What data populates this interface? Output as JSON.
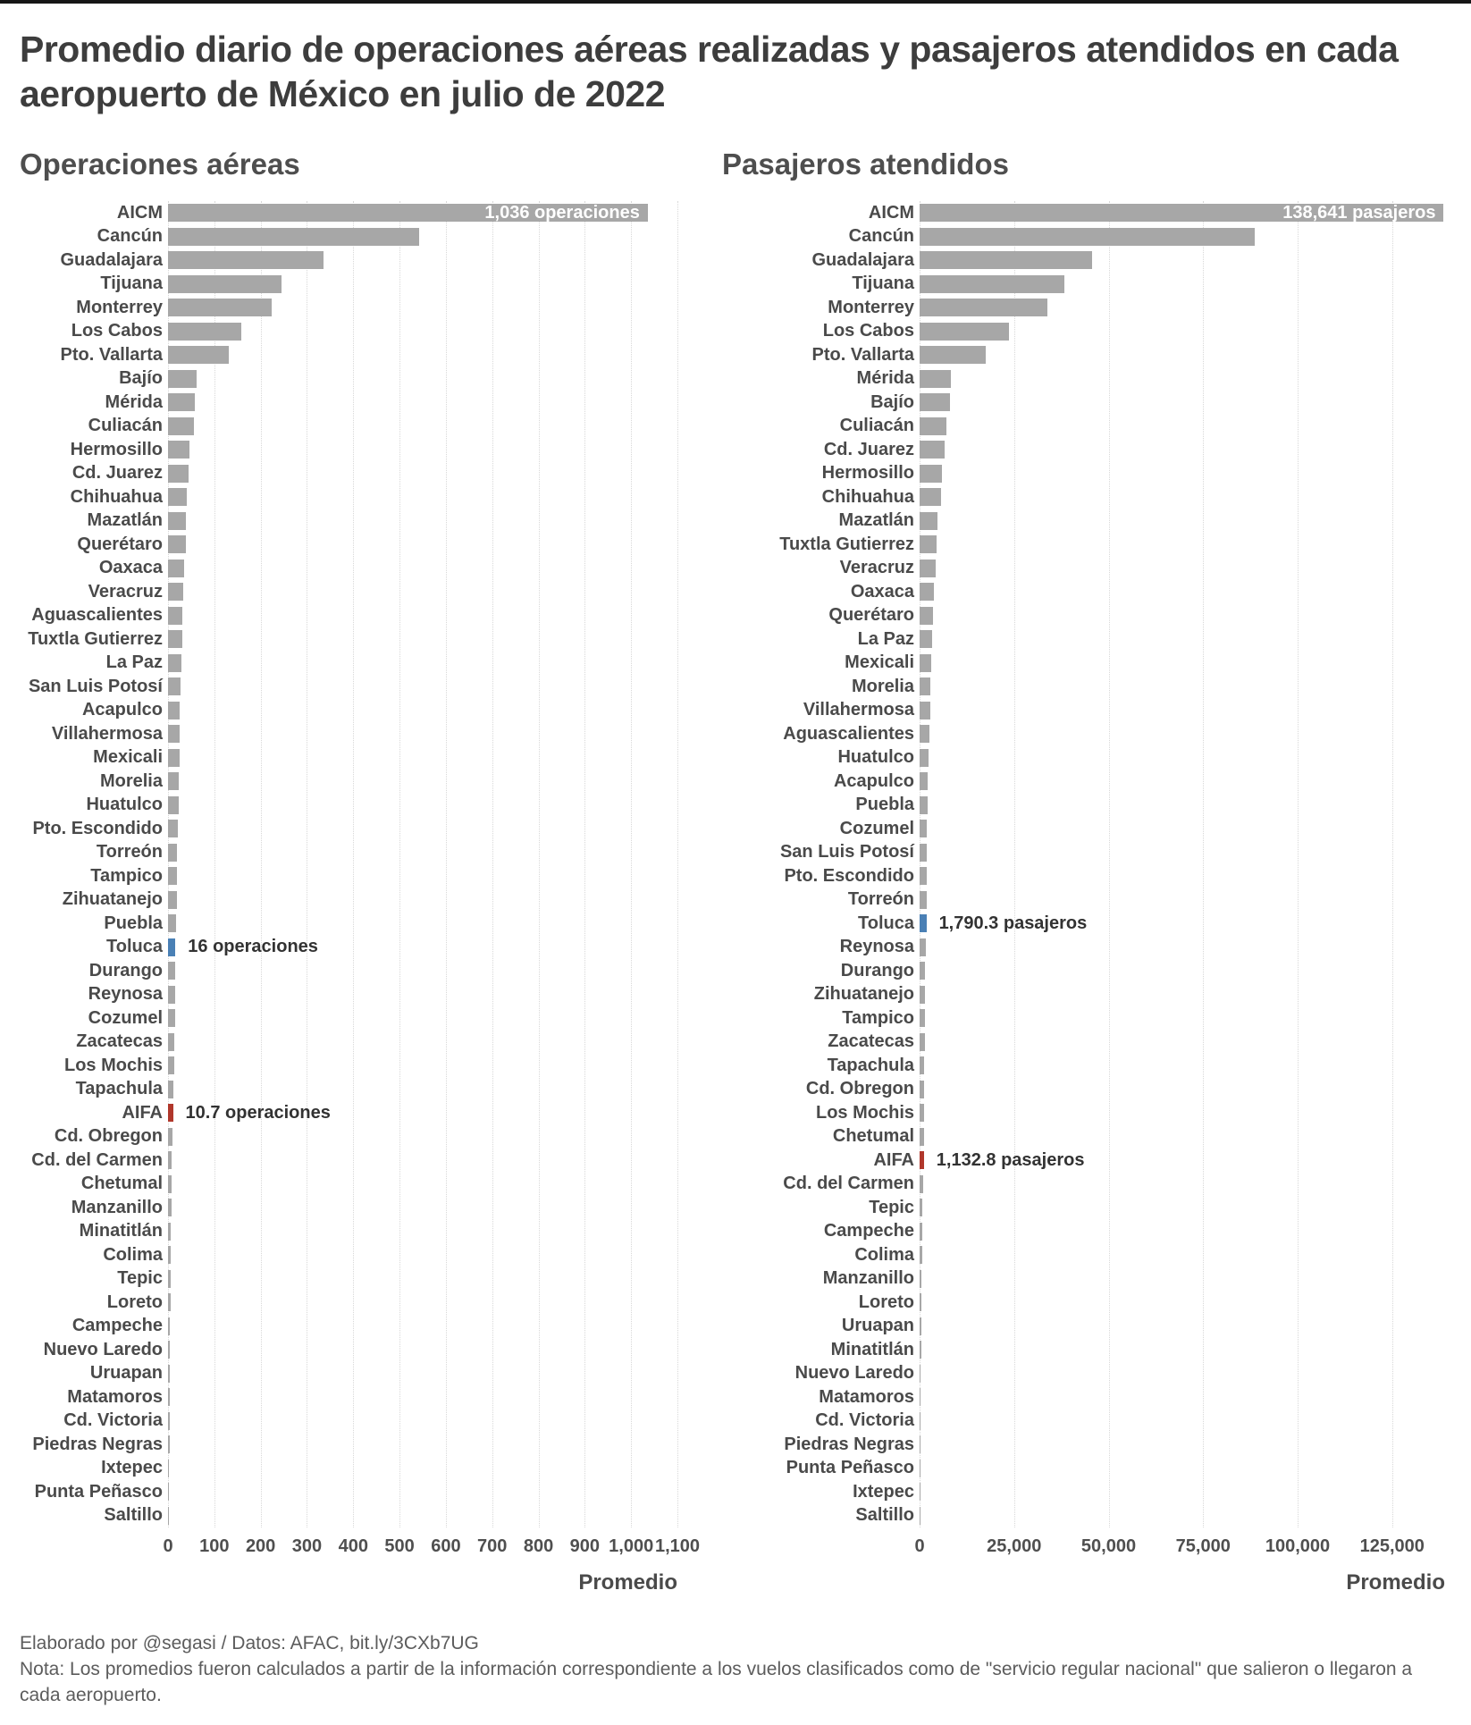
{
  "page": {
    "title": "Promedio diario de operaciones aéreas realizadas y pasajeros atendidos en cada aeropuerto de México en julio de 2022",
    "axis_title": "Promedio",
    "footer_credit": "Elaborado por @segasi / Datos: AFAC, bit.ly/3CXb7UG",
    "footer_note": "Nota: Los promedios fueron calculados a partir de la información correspondiente a los vuelos clasificados como de \"servicio regular nacional\" que salieron o llegaron a cada aeropuerto."
  },
  "colors": {
    "bar": "#a7a7a7",
    "highlight_blue": "#4a80b5",
    "highlight_red": "#b0372b",
    "annotation_inside": "#ffffff",
    "annotation_outside": "#323232"
  },
  "chart_data": [
    {
      "type": "bar",
      "orientation": "horizontal",
      "title": "Operaciones aéreas",
      "xlabel": "Promedio",
      "xlim": [
        0,
        1100
      ],
      "grid": "dotted-vertical",
      "xticks": [
        0,
        100,
        200,
        300,
        400,
        500,
        600,
        700,
        800,
        900,
        1000,
        1100
      ],
      "xtick_labels": [
        "0",
        "100",
        "200",
        "300",
        "400",
        "500",
        "600",
        "700",
        "800",
        "900",
        "1,000",
        "1,100"
      ],
      "categories": [
        "AICM",
        "Cancún",
        "Guadalajara",
        "Tijuana",
        "Monterrey",
        "Los Cabos",
        "Pto. Vallarta",
        "Bajío",
        "Mérida",
        "Culiacán",
        "Hermosillo",
        "Cd. Juarez",
        "Chihuahua",
        "Mazatlán",
        "Querétaro",
        "Oaxaca",
        "Veracruz",
        "Aguascalientes",
        "Tuxtla Gutierrez",
        "La Paz",
        "San Luis Potosí",
        "Acapulco",
        "Villahermosa",
        "Mexicali",
        "Morelia",
        "Huatulco",
        "Pto. Escondido",
        "Torreón",
        "Tampico",
        "Zihuatanejo",
        "Puebla",
        "Toluca",
        "Durango",
        "Reynosa",
        "Cozumel",
        "Zacatecas",
        "Los Mochis",
        "Tapachula",
        "AIFA",
        "Cd. Obregon",
        "Cd. del Carmen",
        "Chetumal",
        "Manzanillo",
        "Minatitlán",
        "Colima",
        "Tepic",
        "Loreto",
        "Campeche",
        "Nuevo Laredo",
        "Uruapan",
        "Matamoros",
        "Cd. Victoria",
        "Piedras Negras",
        "Ixtepec",
        "Punta Peñasco",
        "Saltillo"
      ],
      "values": [
        1036,
        542,
        336,
        246,
        223,
        158,
        132,
        61,
        58.5,
        56,
        46,
        45,
        40,
        38.5,
        38,
        34,
        33,
        31.5,
        30,
        29,
        27.5,
        26,
        25.5,
        24.5,
        24,
        22.5,
        20.5,
        20,
        19.5,
        18.5,
        17.5,
        16,
        15.5,
        15,
        14.5,
        14,
        13.5,
        12.5,
        10.7,
        10.5,
        8,
        7.5,
        7,
        6.5,
        6,
        5.5,
        5,
        4.5,
        4.5,
        4,
        3.5,
        3,
        3,
        2.5,
        2,
        1.5
      ],
      "highlights": {
        "Toluca": "blue",
        "AIFA": "red"
      },
      "annotations": [
        {
          "category": "AICM",
          "text": "1,036 operaciones",
          "placement": "inside"
        },
        {
          "category": "Toluca",
          "text": "16 operaciones",
          "placement": "outside"
        },
        {
          "category": "AIFA",
          "text": "10.7 operaciones",
          "placement": "outside"
        }
      ]
    },
    {
      "type": "bar",
      "orientation": "horizontal",
      "title": "Pasajeros atendidos",
      "xlabel": "Promedio",
      "xlim": [
        0,
        139000
      ],
      "grid": "dotted-vertical",
      "xticks": [
        0,
        25000,
        50000,
        75000,
        100000,
        125000
      ],
      "xtick_labels": [
        "0",
        "25,000",
        "50,000",
        "75,000",
        "100,000",
        "125,000"
      ],
      "categories": [
        "AICM",
        "Cancún",
        "Guadalajara",
        "Tijuana",
        "Monterrey",
        "Los Cabos",
        "Pto. Vallarta",
        "Mérida",
        "Bajío",
        "Culiacán",
        "Cd. Juarez",
        "Hermosillo",
        "Chihuahua",
        "Mazatlán",
        "Tuxtla Gutierrez",
        "Veracruz",
        "Oaxaca",
        "Querétaro",
        "La Paz",
        "Mexicali",
        "Morelia",
        "Villahermosa",
        "Aguascalientes",
        "Huatulco",
        "Acapulco",
        "Puebla",
        "Cozumel",
        "San Luis Potosí",
        "Pto. Escondido",
        "Torreón",
        "Toluca",
        "Reynosa",
        "Durango",
        "Zihuatanejo",
        "Tampico",
        "Zacatecas",
        "Tapachula",
        "Cd. Obregon",
        "Los Mochis",
        "Chetumal",
        "AIFA",
        "Cd. del Carmen",
        "Tepic",
        "Campeche",
        "Colima",
        "Manzanillo",
        "Loreto",
        "Uruapan",
        "Minatitlán",
        "Nuevo Laredo",
        "Matamoros",
        "Cd. Victoria",
        "Piedras Negras",
        "Punta Peñasco",
        "Ixtepec",
        "Saltillo"
      ],
      "values": [
        138641,
        88700,
        45700,
        38200,
        33700,
        23600,
        17600,
        8300,
        8000,
        7100,
        6600,
        6000,
        5700,
        4700,
        4500,
        4300,
        3900,
        3500,
        3300,
        3100,
        2900,
        2750,
        2500,
        2350,
        2200,
        2100,
        2000,
        1950,
        1870,
        1820,
        1790.3,
        1550,
        1500,
        1450,
        1400,
        1350,
        1300,
        1250,
        1200,
        1160,
        1132.8,
        850,
        750,
        650,
        600,
        550,
        500,
        450,
        400,
        350,
        300,
        250,
        200,
        150,
        120,
        80
      ],
      "highlights": {
        "Toluca": "blue",
        "AIFA": "red"
      },
      "annotations": [
        {
          "category": "AICM",
          "text": "138,641 pasajeros",
          "placement": "inside"
        },
        {
          "category": "Toluca",
          "text": "1,790.3 pasajeros",
          "placement": "outside"
        },
        {
          "category": "AIFA",
          "text": "1,132.8 pasajeros",
          "placement": "outside"
        }
      ]
    }
  ]
}
